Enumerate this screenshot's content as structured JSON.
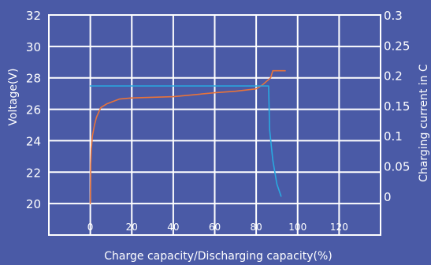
{
  "chart_data": {
    "type": "line",
    "xlabel": "Charge capacity/Discharging capacity(%)",
    "ylabel_left": "Voltage(V)",
    "ylabel_right": "Charging current in C",
    "x_ticks": [
      "0",
      "20",
      "40",
      "60",
      "80",
      "100",
      "120"
    ],
    "y_left_ticks": [
      "20",
      "22",
      "24",
      "26",
      "28",
      "30",
      "32"
    ],
    "y_right_ticks": [
      "0",
      "0.05",
      "0.1",
      "0.15",
      "0.2",
      "0.25",
      "0.3"
    ],
    "xlim": [
      -20,
      140
    ],
    "ylim_left": [
      18,
      32
    ],
    "ylim_right": [
      -0.0643,
      0.3
    ],
    "grid": true,
    "series": [
      {
        "axis": "left",
        "color": "#e8733a",
        "x": [
          0,
          0.2,
          0.5,
          1,
          2,
          3,
          5,
          8,
          14,
          20,
          40,
          60,
          70,
          80,
          83,
          87,
          88,
          94
        ],
        "y": [
          20,
          22.5,
          23.5,
          24.3,
          25,
          25.5,
          26.1,
          26.35,
          26.65,
          26.72,
          26.8,
          27.05,
          27.15,
          27.3,
          27.55,
          28,
          28.45,
          28.45
        ]
      },
      {
        "axis": "right",
        "color": "#29a9e0",
        "x": [
          0,
          86,
          86.5,
          88,
          90,
          92
        ],
        "y": [
          0.1825,
          0.1825,
          0.11,
          0.06,
          0.02,
          0
        ]
      }
    ]
  }
}
